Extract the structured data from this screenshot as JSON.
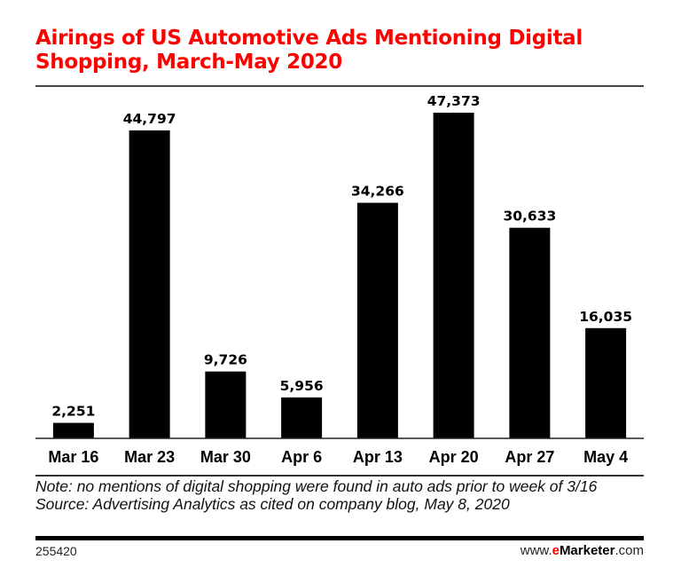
{
  "chart_data": {
    "type": "bar",
    "title": "Airings of US Automotive Ads Mentioning Digital Shopping, March-May 2020",
    "categories": [
      "Mar 16",
      "Mar 23",
      "Mar 30",
      "Apr 6",
      "Apr 13",
      "Apr 20",
      "Apr 27",
      "May 4"
    ],
    "values": [
      2251,
      44797,
      9726,
      5956,
      34266,
      47373,
      30633,
      16035
    ],
    "value_labels": [
      "2,251",
      "44,797",
      "9,726",
      "5,956",
      "34,266",
      "47,373",
      "30,633",
      "16,035"
    ],
    "xlabel": "",
    "ylabel": "",
    "ylim": [
      0,
      47373
    ],
    "grid": false,
    "bar_color": "#000000"
  },
  "header": {
    "title": "Airings of US Automotive Ads Mentioning Digital Shopping, March-May 2020",
    "title_color": "#ff0000"
  },
  "footer": {
    "note": "Note: no mentions of digital shopping were found in auto ads prior to week of 3/16",
    "source": "Source: Advertising Analytics as cited on company blog, May 8, 2020",
    "chart_id": "255420",
    "brand_prefix": "www.",
    "brand_e": "e",
    "brand_name": "Marketer",
    "brand_suffix": ".com"
  }
}
